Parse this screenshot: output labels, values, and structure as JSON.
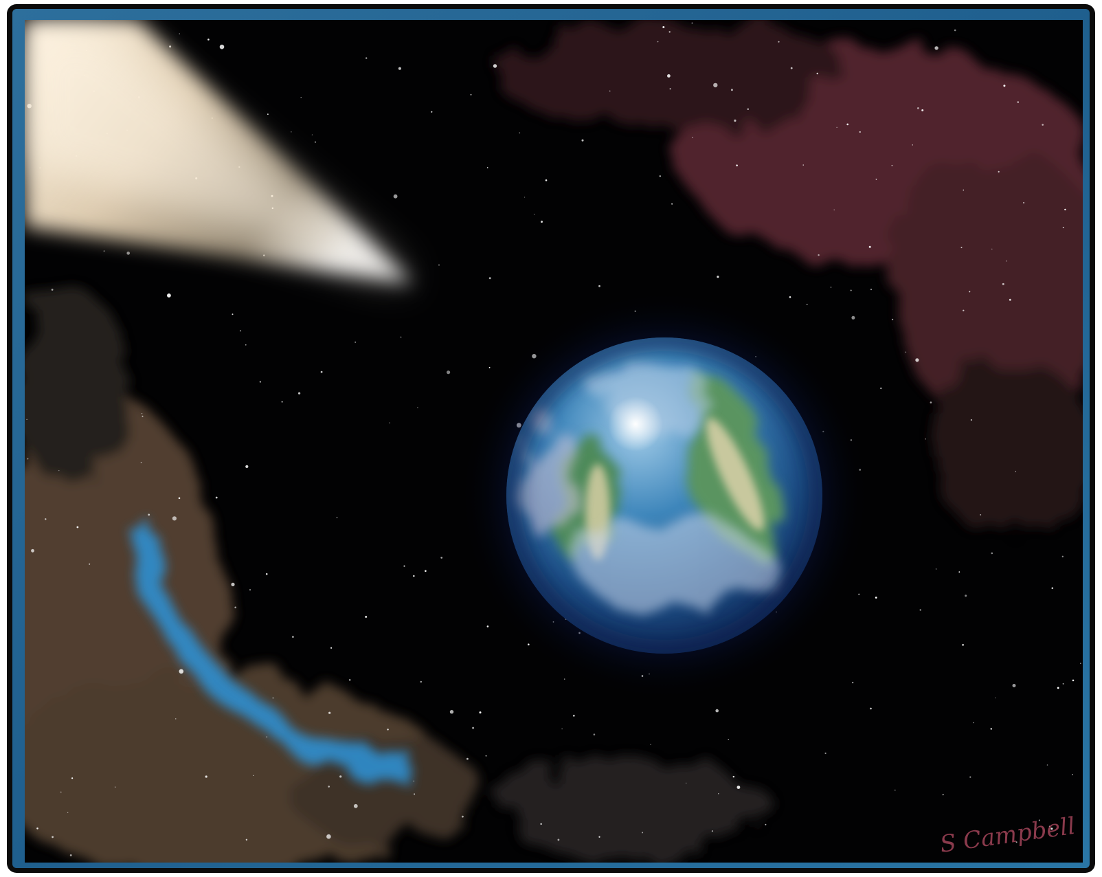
{
  "signature": "S Campbell"
}
